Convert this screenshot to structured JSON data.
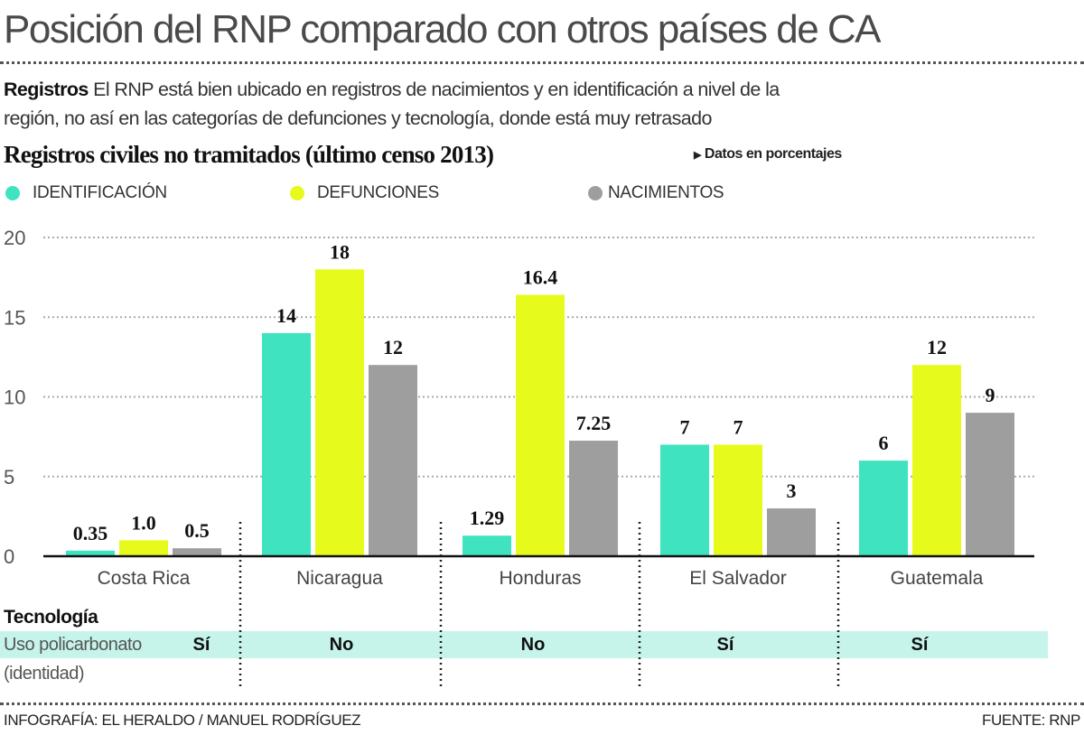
{
  "title": "Posición del RNP comparado con otros países de CA",
  "intro": {
    "lead": "Registros",
    "line1": " El RNP está bien ubicado en registros de nacimientos y en identificación a nivel de la",
    "line2": "región, no así en las categorías de defunciones y tecnología, donde está muy retrasado"
  },
  "chart_data": {
    "type": "bar",
    "title": "Registros civiles no tramitados (último censo 2013)",
    "unit_note": "Datos en porcentajes",
    "categories": [
      "Costa Rica",
      "Nicaragua",
      "Honduras",
      "El Salvador",
      "Guatemala"
    ],
    "series": [
      {
        "name": "IDENTIFICACIÓN",
        "color": "#3fe3c0",
        "values": [
          0.35,
          14,
          1.29,
          7,
          6
        ],
        "labels": [
          "0.35",
          "14",
          "1.29",
          "7",
          "6"
        ]
      },
      {
        "name": "DEFUNCIONES",
        "color": "#e6fb1c",
        "values": [
          1.0,
          18,
          16.4,
          7,
          12
        ],
        "labels": [
          "1.0",
          "18",
          "16.4",
          "7",
          "12"
        ]
      },
      {
        "name": "NACIMIENTOS",
        "color": "#9e9e9e",
        "values": [
          0.5,
          12,
          7.25,
          3,
          9
        ],
        "labels": [
          "0.5",
          "12",
          "7.25",
          "3",
          "9"
        ]
      }
    ],
    "yticks": [
      "0",
      "5",
      "10",
      "15",
      "20"
    ],
    "ylim": [
      0,
      20
    ],
    "grid": true,
    "legend": "top-left"
  },
  "technology": {
    "title": "Tecnología",
    "label_line1": "Uso policarbonato",
    "label_line2": "(identidad)",
    "values": [
      "Sí",
      "No",
      "No",
      "Sí",
      "Sí"
    ],
    "band_color": "#c6f4ea"
  },
  "footer": {
    "credit": "INFOGRAFÍA: EL HERALDO / MANUEL RODRÍGUEZ",
    "source": "FUENTE: RNP"
  }
}
